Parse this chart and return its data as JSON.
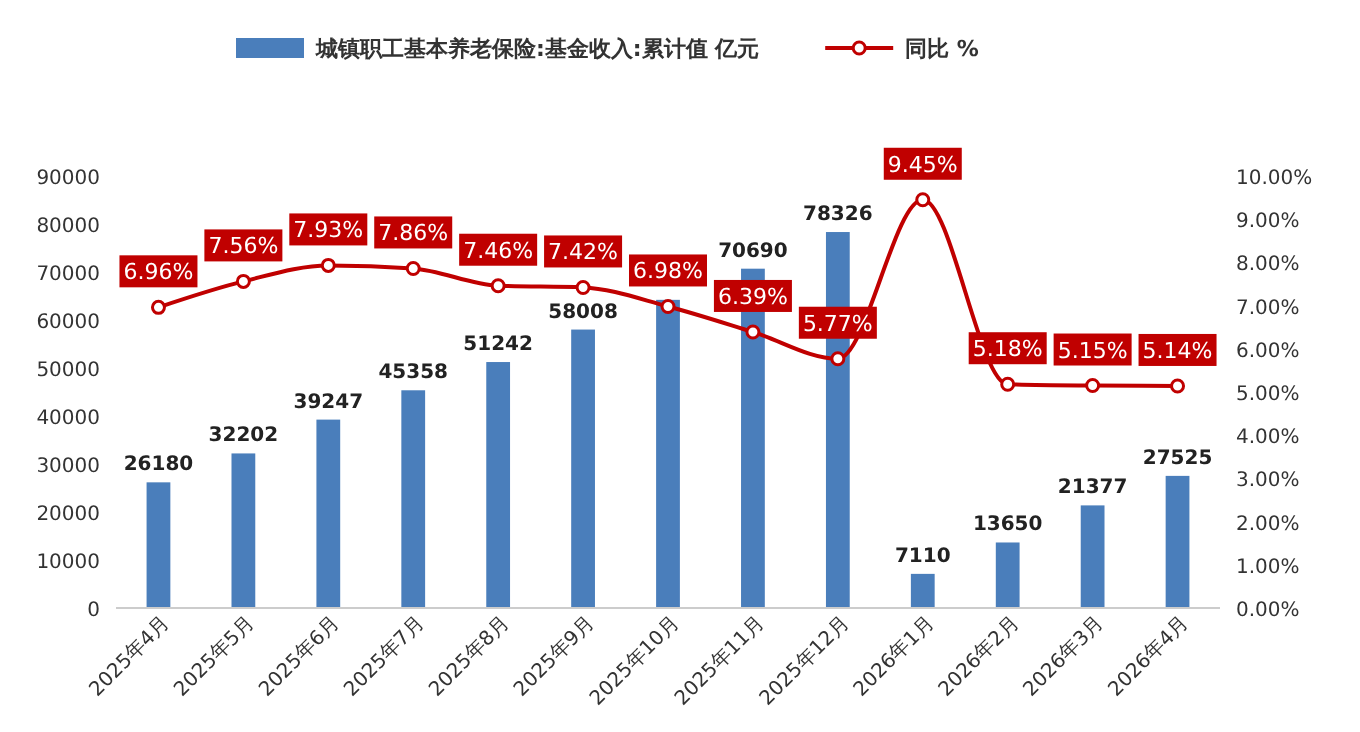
{
  "chart_data": {
    "type": "bar",
    "categories": [
      "2025年4月",
      "2025年5月",
      "2025年6月",
      "2025年7月",
      "2025年8月",
      "2025年9月",
      "2025年10月",
      "2025年11月",
      "2025年12月",
      "2026年1月",
      "2026年2月",
      "2026年3月",
      "2026年4月"
    ],
    "series": [
      {
        "name": "城镇职工基本养老保险:基金收入:累计值 亿元",
        "color": "#4a7ebb",
        "values": [
          26180,
          32202,
          39247,
          45358,
          51242,
          58008,
          64200,
          70690,
          78326,
          7110,
          13650,
          21377,
          27525
        ],
        "value_labels": [
          "26180",
          "32202",
          "39247",
          "45358",
          "51242",
          "58008",
          null,
          "70690",
          "78326",
          "7110",
          "13650",
          "21377",
          "27525"
        ]
      },
      {
        "name": "同比 %",
        "type": "line",
        "axis": "y2",
        "color": "#c00000",
        "marker": "circle",
        "values": [
          6.96,
          7.56,
          7.93,
          7.86,
          7.46,
          7.42,
          6.98,
          6.39,
          5.77,
          9.45,
          5.18,
          5.15,
          5.14
        ],
        "value_labels": [
          "6.96%",
          "7.56%",
          "7.93%",
          "7.86%",
          "7.46%",
          "7.42%",
          "6.98%",
          "6.39%",
          "5.77%",
          "9.45%",
          "5.18%",
          "5.15%",
          "5.14%"
        ]
      }
    ],
    "ylim": [
      0,
      90000
    ],
    "yticks": [
      0,
      10000,
      20000,
      30000,
      40000,
      50000,
      60000,
      70000,
      80000,
      90000
    ],
    "y2lim": [
      0,
      10
    ],
    "y2ticks": [
      {
        "value": 0,
        "label": "0.00%"
      },
      {
        "value": 1,
        "label": "1.00%"
      },
      {
        "value": 2,
        "label": "2.00%"
      },
      {
        "value": 3,
        "label": "3.00%"
      },
      {
        "value": 4,
        "label": "4.00%"
      },
      {
        "value": 5,
        "label": "5.00%"
      },
      {
        "value": 6,
        "label": "6.00%"
      },
      {
        "value": 7,
        "label": "7.00%"
      },
      {
        "value": 8,
        "label": "8.00%"
      },
      {
        "value": 9,
        "label": "9.00%"
      },
      {
        "value": 10,
        "label": "10.00%"
      }
    ],
    "legend": "top",
    "grid": false
  }
}
